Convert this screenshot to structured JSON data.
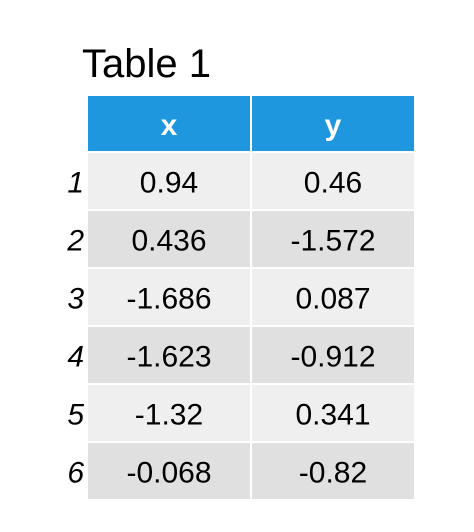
{
  "title": "Table 1",
  "table": {
    "columns": [
      "x",
      "y"
    ],
    "row_labels": [
      "1",
      "2",
      "3",
      "4",
      "5",
      "6"
    ],
    "rows": [
      [
        0.94,
        0.46
      ],
      [
        0.436,
        -1.572
      ],
      [
        -1.686,
        0.087
      ],
      [
        -1.623,
        -0.912
      ],
      [
        -1.32,
        0.341
      ],
      [
        -0.068,
        -0.82
      ]
    ]
  }
}
